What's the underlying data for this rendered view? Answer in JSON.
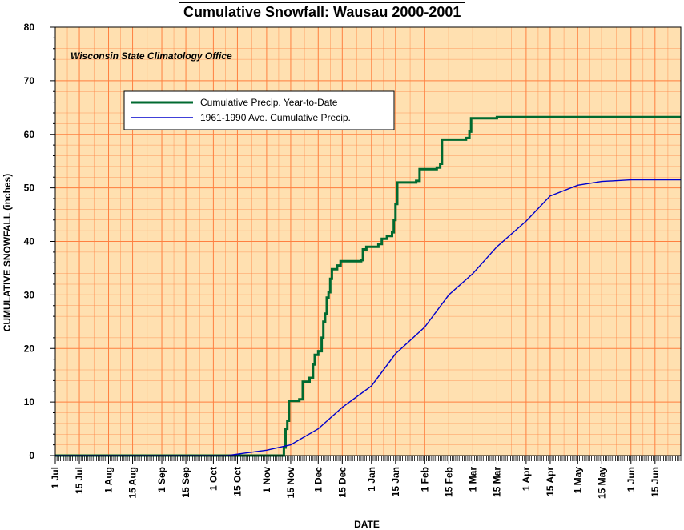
{
  "chart_data": {
    "type": "line",
    "title": "Cumulative Snowfall: Wausau 2000-2001",
    "subtitle": "Wisconsin State Climatology Office",
    "xlabel": "DATE",
    "ylabel": "CUMULATIVE SNOWFALL (inches)",
    "ylim": [
      0,
      80
    ],
    "yticks": [
      0,
      10,
      20,
      30,
      40,
      50,
      60,
      70,
      80
    ],
    "xlim": [
      "2000-07-01",
      "2001-06-30"
    ],
    "xticks": [
      {
        "label": "1 Jul",
        "date": "2000-07-01"
      },
      {
        "label": "15 Jul",
        "date": "2000-07-15"
      },
      {
        "label": "1 Aug",
        "date": "2000-08-01"
      },
      {
        "label": "15 Aug",
        "date": "2000-08-15"
      },
      {
        "label": "1 Sep",
        "date": "2000-09-01"
      },
      {
        "label": "15 Sep",
        "date": "2000-09-15"
      },
      {
        "label": "1 Oct",
        "date": "2000-10-01"
      },
      {
        "label": "15 Oct",
        "date": "2000-10-15"
      },
      {
        "label": "1 Nov",
        "date": "2000-11-01"
      },
      {
        "label": "15 Nov",
        "date": "2000-11-15"
      },
      {
        "label": "1 Dec",
        "date": "2000-12-01"
      },
      {
        "label": "15 Dec",
        "date": "2000-12-15"
      },
      {
        "label": "1 Jan",
        "date": "2001-01-01"
      },
      {
        "label": "15 Jan",
        "date": "2001-01-15"
      },
      {
        "label": "1 Feb",
        "date": "2001-02-01"
      },
      {
        "label": "15 Feb",
        "date": "2001-02-15"
      },
      {
        "label": "1 Mar",
        "date": "2001-03-01"
      },
      {
        "label": "15 Mar",
        "date": "2001-03-15"
      },
      {
        "label": "1 Apr",
        "date": "2001-04-01"
      },
      {
        "label": "15 Apr",
        "date": "2001-04-15"
      },
      {
        "label": "1 May",
        "date": "2001-05-01"
      },
      {
        "label": "15 May",
        "date": "2001-05-15"
      },
      {
        "label": "1 Jun",
        "date": "2001-06-01"
      },
      {
        "label": "15 Jun",
        "date": "2001-06-15"
      }
    ],
    "grid": true,
    "legend_position": "upper-left",
    "colors": {
      "background": "#ffe0b0",
      "grid": "#ff8040",
      "series1": "#006a30",
      "series2": "#0000cc"
    },
    "series": [
      {
        "name": "Cumulative Precip. Year-to-Date",
        "step": true,
        "points": [
          [
            "2000-07-01",
            0
          ],
          [
            "2000-11-10",
            0
          ],
          [
            "2000-11-11",
            1.5
          ],
          [
            "2000-11-12",
            5
          ],
          [
            "2000-11-13",
            6.5
          ],
          [
            "2000-11-14",
            10.2
          ],
          [
            "2000-11-20",
            10.5
          ],
          [
            "2000-11-22",
            13.8
          ],
          [
            "2000-11-26",
            14.5
          ],
          [
            "2000-11-28",
            17
          ],
          [
            "2000-11-29",
            18.8
          ],
          [
            "2000-12-01",
            19.5
          ],
          [
            "2000-12-03",
            22
          ],
          [
            "2000-12-04",
            25
          ],
          [
            "2000-12-05",
            26.5
          ],
          [
            "2000-12-06",
            29.5
          ],
          [
            "2000-12-07",
            30.5
          ],
          [
            "2000-12-08",
            33
          ],
          [
            "2000-12-09",
            34.8
          ],
          [
            "2000-12-12",
            35.5
          ],
          [
            "2000-12-14",
            36.3
          ],
          [
            "2000-12-26",
            36.5
          ],
          [
            "2000-12-27",
            38.5
          ],
          [
            "2000-12-29",
            39
          ],
          [
            "2001-01-05",
            39.5
          ],
          [
            "2001-01-07",
            40.5
          ],
          [
            "2001-01-10",
            41
          ],
          [
            "2001-01-13",
            41.7
          ],
          [
            "2001-01-14",
            44
          ],
          [
            "2001-01-15",
            47
          ],
          [
            "2001-01-16",
            51
          ],
          [
            "2001-01-27",
            51.3
          ],
          [
            "2001-01-29",
            53.5
          ],
          [
            "2001-02-08",
            53.8
          ],
          [
            "2001-02-10",
            54.5
          ],
          [
            "2001-02-11",
            59
          ],
          [
            "2001-02-25",
            59.3
          ],
          [
            "2001-02-27",
            60.5
          ],
          [
            "2001-02-28",
            63
          ],
          [
            "2001-03-15",
            63.2
          ],
          [
            "2001-06-30",
            63.2
          ]
        ]
      },
      {
        "name": "1961-1990 Ave. Cumulative Precip.",
        "step": false,
        "points": [
          [
            "2000-07-01",
            0
          ],
          [
            "2000-10-09",
            0
          ],
          [
            "2000-10-20",
            0.5
          ],
          [
            "2000-11-01",
            1
          ],
          [
            "2000-11-15",
            2
          ],
          [
            "2000-12-01",
            5
          ],
          [
            "2000-12-15",
            9
          ],
          [
            "2001-01-01",
            13
          ],
          [
            "2001-01-15",
            19
          ],
          [
            "2001-02-01",
            24
          ],
          [
            "2001-02-15",
            30
          ],
          [
            "2001-03-01",
            34
          ],
          [
            "2001-03-15",
            39
          ],
          [
            "2001-04-01",
            43.8
          ],
          [
            "2001-04-15",
            48.5
          ],
          [
            "2001-05-01",
            50.5
          ],
          [
            "2001-05-15",
            51.2
          ],
          [
            "2001-06-01",
            51.5
          ],
          [
            "2001-06-30",
            51.5
          ]
        ]
      }
    ]
  }
}
